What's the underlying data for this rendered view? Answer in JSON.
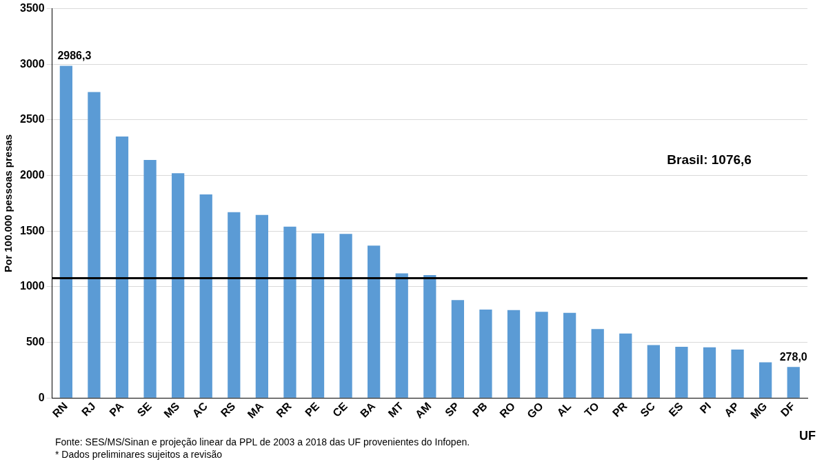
{
  "chart_data": {
    "type": "bar",
    "ylabel": "Por 100.000 pessoas presas",
    "xlabel": "UF",
    "categories": [
      "RN",
      "RJ",
      "PA",
      "SE",
      "MS",
      "AC",
      "RS",
      "MA",
      "RR",
      "PE",
      "CE",
      "BA",
      "MT",
      "AM",
      "SP",
      "PB",
      "RO",
      "GO",
      "AL",
      "TO",
      "PR",
      "SC",
      "ES",
      "PI",
      "AP",
      "MG",
      "DF"
    ],
    "values": [
      2986.3,
      2750,
      2350,
      2140,
      2020,
      1830,
      1670,
      1645,
      1540,
      1480,
      1475,
      1370,
      1120,
      1105,
      880,
      795,
      790,
      775,
      765,
      620,
      580,
      475,
      460,
      455,
      435,
      320,
      278.0
    ],
    "value_labels": [
      "2986,3",
      null,
      null,
      null,
      null,
      null,
      null,
      null,
      null,
      null,
      null,
      null,
      null,
      null,
      null,
      null,
      null,
      null,
      null,
      null,
      null,
      null,
      null,
      null,
      null,
      null,
      "278,0"
    ],
    "color": "#5b9bd5",
    "ylim": [
      0,
      3500
    ],
    "yticks": [
      0,
      500,
      1000,
      1500,
      2000,
      2500,
      3000,
      3500
    ],
    "grid": "y",
    "ref_lines": [
      {
        "axis": "y",
        "value": 1076.6,
        "label": "Brasil: 1076,6",
        "color": "#000000"
      }
    ],
    "annotations": [
      "Fonte: SES/MS/Sinan e projeção linear da PPL de 2003 a 2018 das UF provenientes do Infopen.",
      "* Dados preliminares sujeitos a revisão"
    ]
  }
}
